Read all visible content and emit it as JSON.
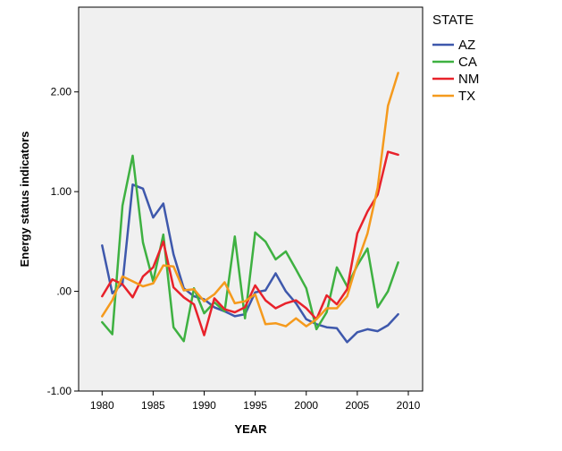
{
  "chart_data": {
    "type": "line",
    "xlabel": "YEAR",
    "ylabel": "Energy status indicators",
    "xlim": [
      1977.7,
      2011.4
    ],
    "ylim": [
      -1.0,
      2.85
    ],
    "xticks": [
      1980,
      1985,
      1990,
      1995,
      2000,
      2005,
      2010
    ],
    "yticks": [
      {
        "value": -1.0,
        "label": "-1.00"
      },
      {
        "value": 0.0,
        "label": ".00"
      },
      {
        "value": 1.0,
        "label": "1.00"
      },
      {
        "value": 2.0,
        "label": "2.00"
      }
    ],
    "legend_title": "STATE",
    "legend_position": "right",
    "plot_background": "#f0f0f0",
    "x": [
      1980,
      1981,
      1982,
      1983,
      1984,
      1985,
      1986,
      1987,
      1988,
      1989,
      1990,
      1991,
      1992,
      1993,
      1994,
      1995,
      1996,
      1997,
      1998,
      1999,
      2000,
      2001,
      2002,
      2003,
      2004,
      2005,
      2006,
      2007,
      2008,
      2009
    ],
    "series": [
      {
        "name": "AZ",
        "color": "#3e58ac",
        "values": [
          0.46,
          -0.02,
          0.08,
          1.07,
          1.03,
          0.74,
          0.88,
          0.37,
          0.03,
          -0.05,
          -0.08,
          -0.16,
          -0.2,
          -0.25,
          -0.23,
          -0.01,
          0.01,
          0.18,
          0.0,
          -0.12,
          -0.28,
          -0.33,
          -0.36,
          -0.37,
          -0.51,
          -0.41,
          -0.38,
          -0.4,
          -0.34,
          -0.23
        ]
      },
      {
        "name": "CA",
        "color": "#3eb141",
        "values": [
          -0.31,
          -0.43,
          0.86,
          1.36,
          0.49,
          0.1,
          0.57,
          -0.36,
          -0.5,
          0.03,
          -0.22,
          -0.11,
          -0.2,
          0.55,
          -0.27,
          0.59,
          0.5,
          0.32,
          0.4,
          0.22,
          0.03,
          -0.38,
          -0.21,
          0.24,
          0.05,
          0.26,
          0.43,
          -0.16,
          0.0,
          0.29
        ]
      },
      {
        "name": "NM",
        "color": "#e8222b",
        "values": [
          -0.05,
          0.12,
          0.07,
          -0.06,
          0.15,
          0.24,
          0.5,
          0.04,
          -0.06,
          -0.13,
          -0.44,
          -0.07,
          -0.18,
          -0.21,
          -0.16,
          0.06,
          -0.09,
          -0.17,
          -0.12,
          -0.09,
          -0.17,
          -0.28,
          -0.04,
          -0.13,
          0.02,
          0.58,
          0.8,
          0.97,
          1.4,
          1.37
        ]
      },
      {
        "name": "TX",
        "color": "#f59a1d",
        "values": [
          -0.25,
          -0.09,
          0.15,
          0.1,
          0.05,
          0.08,
          0.26,
          0.25,
          0.01,
          0.02,
          -0.1,
          -0.03,
          0.09,
          -0.12,
          -0.1,
          -0.03,
          -0.33,
          -0.32,
          -0.35,
          -0.27,
          -0.35,
          -0.28,
          -0.17,
          -0.17,
          -0.05,
          0.29,
          0.58,
          1.04,
          1.86,
          2.19
        ]
      }
    ]
  }
}
